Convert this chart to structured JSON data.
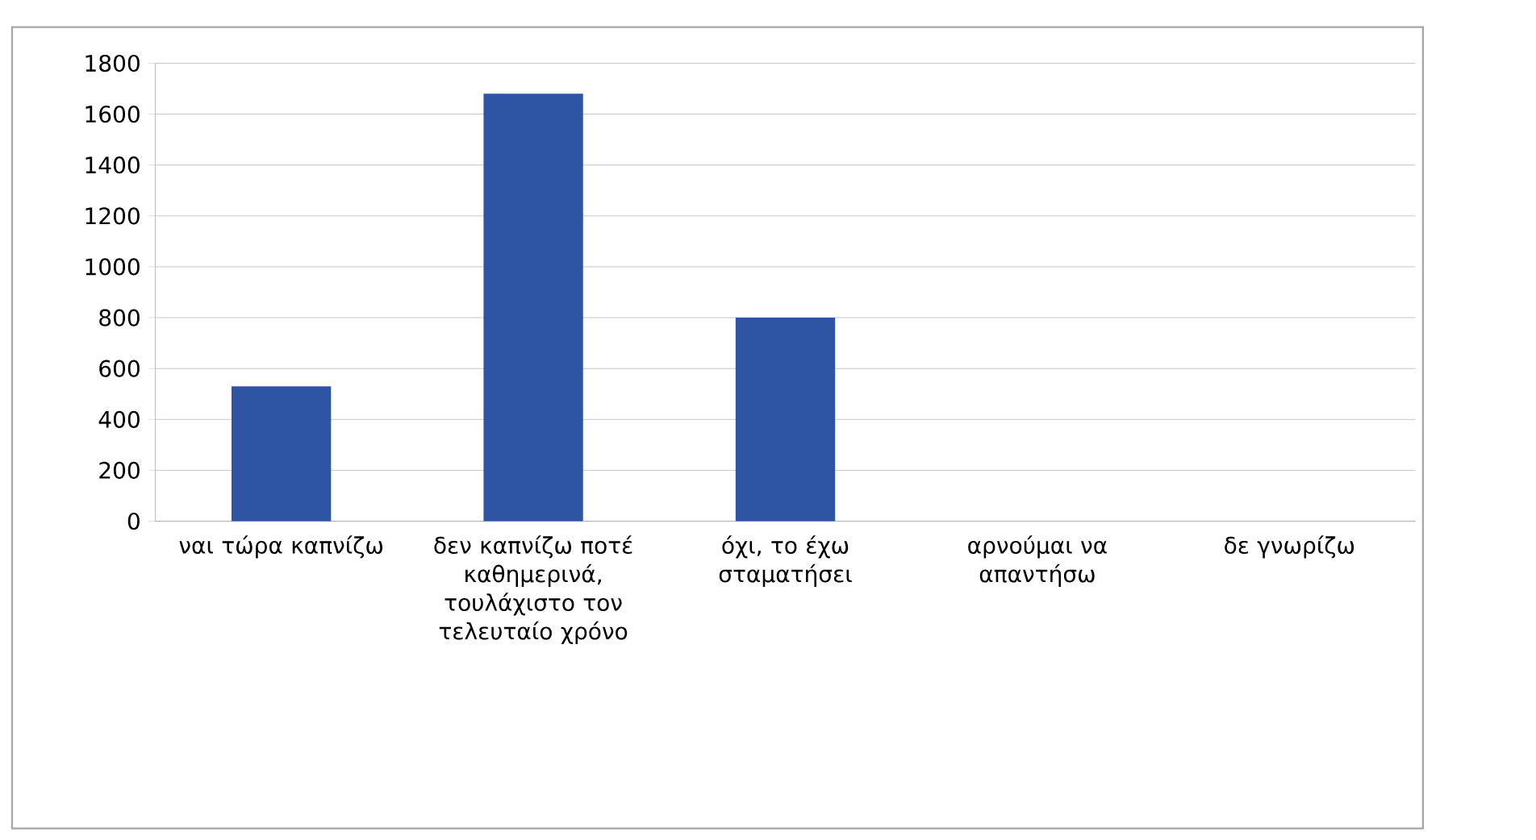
{
  "chart_data": {
    "type": "bar",
    "categories": [
      "ναι τώρα καπνίζω",
      "δεν καπνίζω ποτέ καθημερινά, τουλάχιστο τον τελευταίο χρόνο",
      "όχι, το έχω σταματήσει",
      "αρνούμαι να απαντήσω",
      "δε γνωρίζω"
    ],
    "values": [
      530,
      1680,
      800,
      0,
      0
    ],
    "color": "#2e55a4",
    "ylim": [
      0,
      1800
    ],
    "yticks": [
      0,
      200,
      400,
      600,
      800,
      1000,
      1200,
      1400,
      1600,
      1800
    ],
    "grid": "y"
  }
}
